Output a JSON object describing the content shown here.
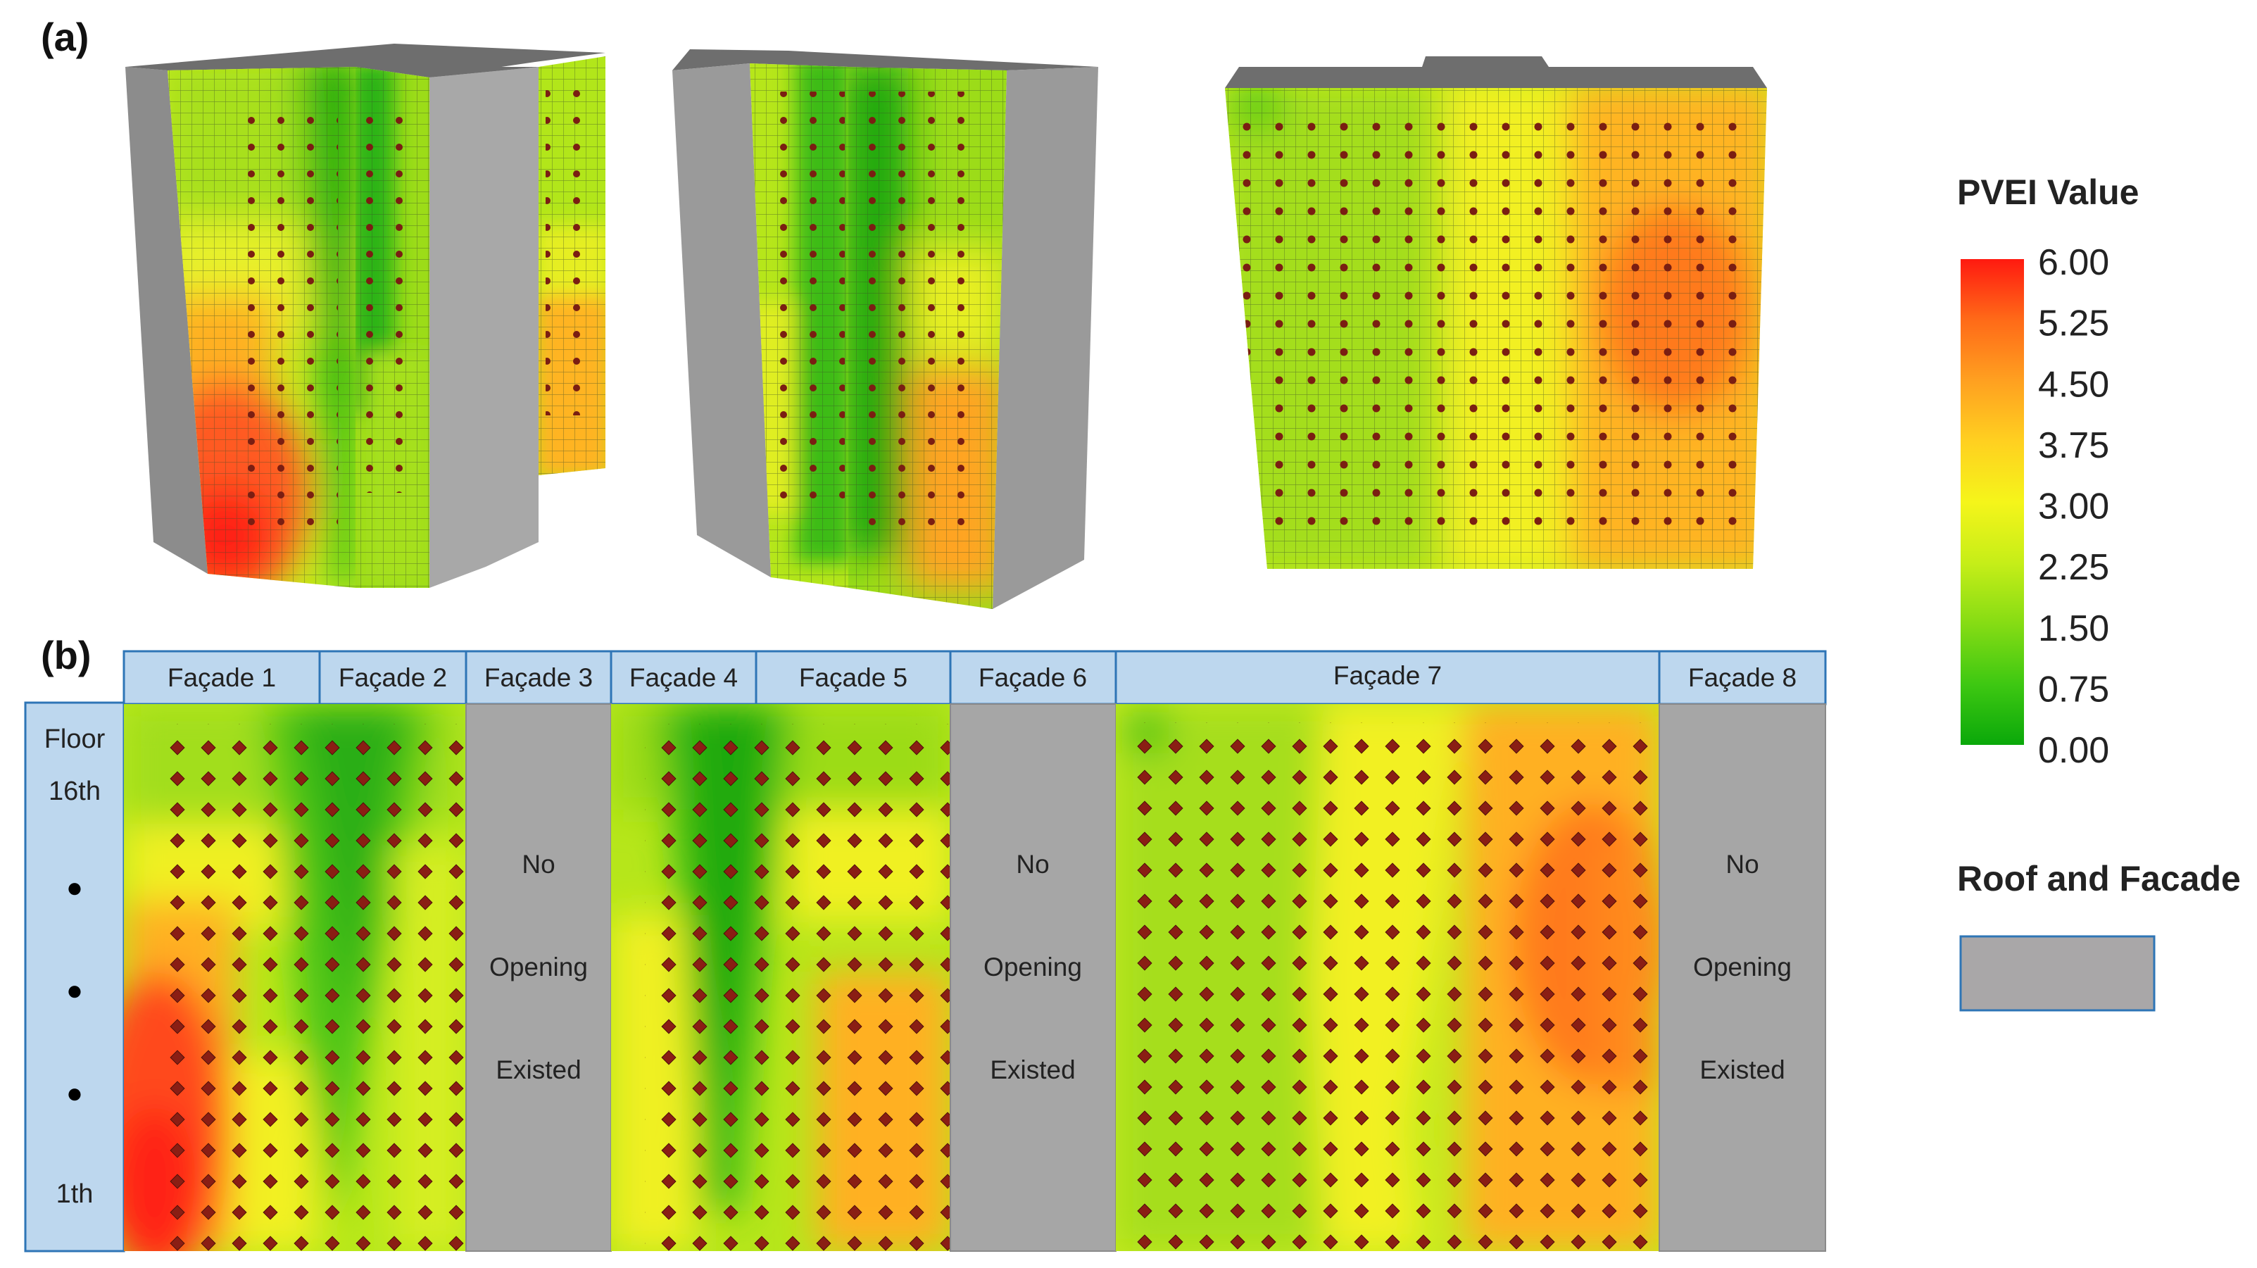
{
  "panel_a_label": "(a)",
  "panel_b_label": "(b)",
  "legend": {
    "title": "PVEI Value",
    "ticks": [
      "6.00",
      "5.25",
      "4.50",
      "3.75",
      "3.00",
      "2.25",
      "1.50",
      "0.75",
      "0.00"
    ],
    "gradient_colors": [
      "#ff1a10",
      "#ff6a18",
      "#ffa020",
      "#ffd020",
      "#f5f51a",
      "#c6ee18",
      "#86dc14",
      "#3ec812",
      "#0aa80a"
    ],
    "surface_label": "Roof and Facade",
    "surface_color": "#a9a7a8"
  },
  "facade_headers": [
    "Façade 1",
    "Façade 2",
    "Façade 3",
    "Façade 4",
    "Façade 5",
    "Façade 6",
    "Façade 7",
    "Façade 8"
  ],
  "floor_axis": {
    "top_label": "Floor",
    "top_floor": "16th",
    "bottom_floor": "1th",
    "dots": [
      "●",
      "●",
      "●"
    ]
  },
  "no_opening_text": [
    "No",
    "Opening",
    "Existed"
  ],
  "colors": {
    "header_bg": "#bdd7ee",
    "header_border": "#2e75b6",
    "facade_gray": "#a6a6a6",
    "marker": "#7a1e12"
  }
}
